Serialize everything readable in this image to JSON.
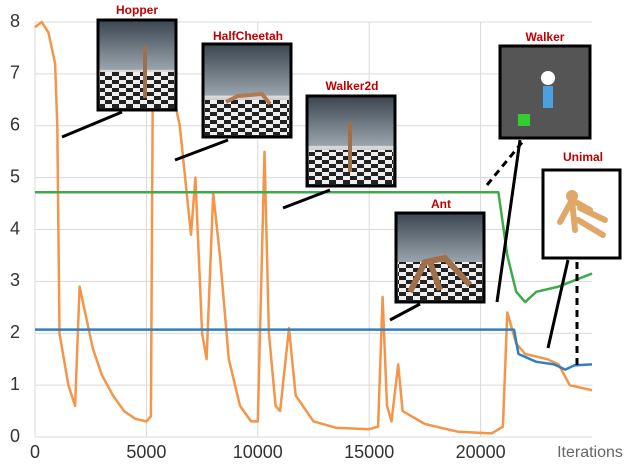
{
  "chart_data": {
    "type": "line",
    "xlabel": "Iterations",
    "annotations": [
      "Hopper",
      "HalfCheetah",
      "Walker2d",
      "Ant",
      "Walker",
      "Unimal"
    ],
    "xlim": [
      0,
      25000
    ],
    "xticks": [
      0,
      5000,
      10000,
      15000,
      20000
    ],
    "ylim": [
      0,
      8
    ],
    "yticks": [
      0,
      1,
      2,
      3,
      4,
      5,
      6,
      7,
      8
    ],
    "grid": true,
    "series": [
      {
        "color": "#f4954a",
        "x": [
          0,
          300,
          600,
          900,
          1000,
          1100,
          1500,
          1800,
          2000,
          2200,
          2600,
          3000,
          3500,
          4000,
          4500,
          5000,
          5200,
          5300,
          5600,
          6000,
          6500,
          7000,
          7200,
          7500,
          7700,
          8000,
          8300,
          8700,
          9200,
          9700,
          10000,
          10300,
          10500,
          10800,
          11000,
          11400,
          11700,
          12500,
          13500,
          15000,
          15400,
          15600,
          15800,
          16000,
          16300,
          16500,
          17500,
          19000,
          20500,
          21000,
          21200,
          21600,
          21800,
          22000,
          23000,
          23500,
          24000,
          25000
        ],
        "values": [
          7.9,
          8.0,
          7.8,
          7.2,
          6.0,
          2.0,
          1.0,
          0.6,
          2.9,
          2.5,
          1.7,
          1.2,
          0.8,
          0.5,
          0.35,
          0.3,
          0.4,
          7.8,
          7.6,
          7.0,
          6.0,
          3.9,
          5.0,
          2.0,
          1.5,
          4.7,
          3.5,
          1.5,
          0.6,
          0.3,
          0.3,
          5.5,
          2.0,
          0.6,
          0.5,
          2.1,
          0.8,
          0.3,
          0.18,
          0.15,
          0.2,
          2.7,
          0.6,
          0.3,
          1.4,
          0.5,
          0.25,
          0.1,
          0.07,
          0.2,
          2.4,
          1.8,
          1.7,
          1.6,
          1.5,
          1.4,
          1.0,
          0.9
        ]
      },
      {
        "color": "#3cab4a",
        "x": [
          0,
          20800,
          21200,
          21600,
          22000,
          22500,
          23500,
          25000
        ],
        "values": [
          4.72,
          4.72,
          3.5,
          2.8,
          2.6,
          2.8,
          2.9,
          3.15
        ]
      },
      {
        "color": "#2f7fc1",
        "x": [
          0,
          21500,
          21700,
          22500,
          23300,
          23800,
          24200,
          25000
        ],
        "values": [
          2.07,
          2.07,
          1.6,
          1.45,
          1.4,
          1.3,
          1.38,
          1.4
        ]
      }
    ]
  }
}
